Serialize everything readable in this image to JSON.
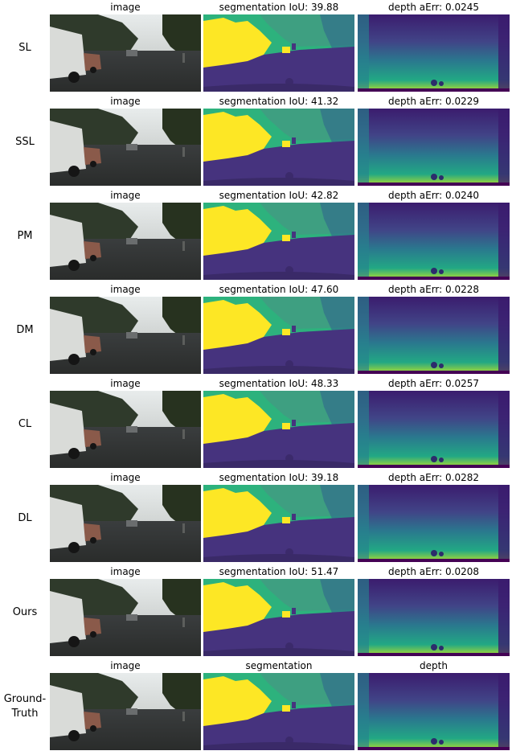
{
  "rows": [
    {
      "label": "SL",
      "titles": [
        "image",
        "segmentation IoU: 39.88",
        "depth aErr: 0.0245"
      ]
    },
    {
      "label": "SSL",
      "titles": [
        "image",
        "segmentation IoU: 41.32",
        "depth aErr: 0.0229"
      ]
    },
    {
      "label": "PM",
      "titles": [
        "image",
        "segmentation IoU: 42.82",
        "depth aErr: 0.0240"
      ]
    },
    {
      "label": "DM",
      "titles": [
        "image",
        "segmentation IoU: 47.60",
        "depth aErr: 0.0228"
      ]
    },
    {
      "label": "CL",
      "titles": [
        "image",
        "segmentation IoU: 48.33",
        "depth aErr: 0.0257"
      ]
    },
    {
      "label": "DL",
      "titles": [
        "image",
        "segmentation IoU: 39.18",
        "depth aErr: 0.0282"
      ]
    },
    {
      "label": "Ours",
      "titles": [
        "image",
        "segmentation IoU: 51.47",
        "depth aErr: 0.0208"
      ]
    },
    {
      "label": "Ground-\nTruth",
      "titles": [
        "image",
        "segmentation",
        "depth"
      ]
    }
  ],
  "colors": {
    "seg_road": "#46337e",
    "seg_sky": "#2db27d",
    "seg_vegetation": "#3e9f81",
    "seg_vehicle": "#fde725",
    "seg_building": "#31688e",
    "depth_far": "#3b1c6e",
    "depth_mid": "#2a788e",
    "depth_near": "#b5de2b"
  }
}
